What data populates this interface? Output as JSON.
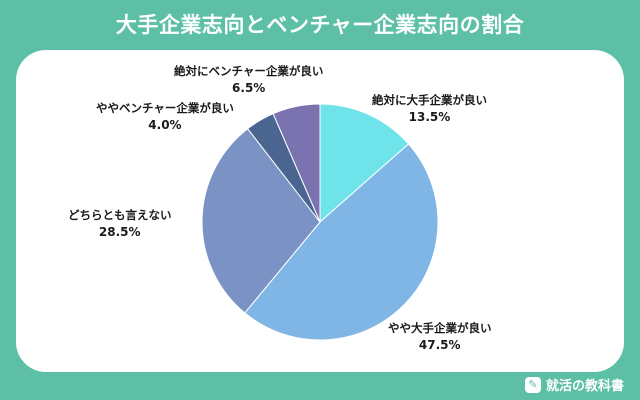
{
  "title": "大手企業志向とベンチャー企業志向の割合",
  "brand": {
    "name": "就活の教科書",
    "icon": "book-pencil-icon"
  },
  "chart_data": {
    "type": "pie",
    "title": "大手企業志向とベンチャー企業志向の割合",
    "slices": [
      {
        "label": "絶対に大手企業が良い",
        "value": 13.5,
        "display": "13.5%",
        "color": "#6ee3ea"
      },
      {
        "label": "やや大手企業が良い",
        "value": 47.5,
        "display": "47.5%",
        "color": "#7fb6e6"
      },
      {
        "label": "どちらとも言えない",
        "value": 28.5,
        "display": "28.5%",
        "color": "#7b92c4"
      },
      {
        "label": "ややベンチャー企業が良い",
        "value": 4.0,
        "display": "4.0%",
        "color": "#4a6590"
      },
      {
        "label": "絶対にベンチャー企業が良い",
        "value": 6.5,
        "display": "6.5%",
        "color": "#7b72b0"
      }
    ],
    "start_angle_deg": 0,
    "direction": "clockwise"
  }
}
